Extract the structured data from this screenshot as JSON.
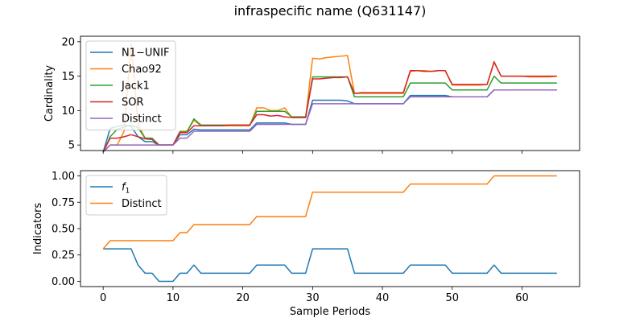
{
  "figure": {
    "title": "infraspecific name (Q631147)"
  },
  "chart_data": [
    {
      "type": "line",
      "ylabel": "Cardinality",
      "xlabel": "",
      "xlim": [
        -3.25,
        68.25
      ],
      "ylim": [
        4.2,
        20.8
      ],
      "xticks": [
        0,
        10,
        20,
        30,
        40,
        50,
        60
      ],
      "yticks": [
        5,
        10,
        15,
        20
      ],
      "legend_position": "upper-left",
      "x": [
        0,
        1,
        2,
        3,
        4,
        5,
        6,
        7,
        8,
        9,
        10,
        11,
        12,
        13,
        14,
        15,
        16,
        17,
        18,
        19,
        20,
        21,
        22,
        23,
        24,
        25,
        26,
        27,
        28,
        29,
        30,
        31,
        32,
        33,
        34,
        35,
        36,
        37,
        38,
        39,
        40,
        41,
        42,
        43,
        44,
        45,
        46,
        47,
        48,
        49,
        50,
        51,
        52,
        53,
        54,
        55,
        56,
        57,
        58,
        59,
        60,
        61,
        62,
        63,
        64,
        65
      ],
      "series": [
        {
          "name": "N1−UNIF",
          "color": "#1f77b4",
          "values": [
            4,
            7.4,
            7.7,
            7.9,
            7.7,
            6.2,
            5.5,
            5.5,
            5,
            5,
            5,
            6.5,
            6.5,
            7.3,
            7.2,
            7.2,
            7.2,
            7.2,
            7.2,
            7.2,
            7.2,
            7.2,
            8.2,
            8.2,
            8.2,
            8.2,
            8.2,
            8,
            8,
            8,
            11.5,
            11.5,
            11.5,
            11.5,
            11.5,
            11.4,
            11,
            11,
            11,
            11,
            11,
            11,
            11,
            11,
            12.2,
            12.2,
            12.2,
            12.2,
            12.2,
            12.2,
            12,
            12,
            12,
            12,
            12,
            12,
            13,
            13,
            13,
            13,
            13,
            13,
            13,
            13,
            13,
            13
          ]
        },
        {
          "name": "Chao92",
          "color": "#ff7f0e",
          "values": [
            4,
            5,
            5,
            7,
            19.7,
            8,
            6,
            6,
            5,
            5,
            5,
            7,
            7,
            8.6,
            7.8,
            7.8,
            7.8,
            7.8,
            7.8,
            7.8,
            7.8,
            7.8,
            10.4,
            10.4,
            10,
            10,
            10.4,
            9,
            9,
            9,
            17.6,
            17.5,
            17.7,
            17.8,
            17.9,
            18,
            12.5,
            12.5,
            12.5,
            12.5,
            12.5,
            12.5,
            12.5,
            12.5,
            15.7,
            15.8,
            15.8,
            15.7,
            15.8,
            15.8,
            13.7,
            13.7,
            13.7,
            13.7,
            13.7,
            13.8,
            17,
            15,
            15,
            15,
            15,
            14.9,
            14.9,
            14.9,
            14.9,
            15
          ]
        },
        {
          "name": "Jack1",
          "color": "#2ca02c",
          "values": [
            4,
            6.2,
            7.3,
            7.6,
            7.9,
            7.5,
            6,
            6,
            5,
            5,
            5,
            6.9,
            6.9,
            8.8,
            7.9,
            7.9,
            7.9,
            7.9,
            7.9,
            7.9,
            7.9,
            7.9,
            9.9,
            9.9,
            9.9,
            9.9,
            9.9,
            9.1,
            9.1,
            9.1,
            14.9,
            14.9,
            14.9,
            14.9,
            14.9,
            14.9,
            12,
            12,
            12,
            12,
            12,
            12,
            12,
            12,
            14,
            14,
            14,
            14,
            14,
            14,
            13,
            13,
            13,
            13,
            13,
            13,
            15,
            14,
            14,
            14,
            14,
            14,
            14,
            14,
            14,
            14
          ]
        },
        {
          "name": "SOR",
          "color": "#d62728",
          "values": [
            4,
            6,
            6,
            6.2,
            6.5,
            6.2,
            5.9,
            5.8,
            5,
            5,
            5,
            6.8,
            6.8,
            7.8,
            7.8,
            7.8,
            7.8,
            7.8,
            7.9,
            7.9,
            7.9,
            7.9,
            9.4,
            9.4,
            9.2,
            9.3,
            9.1,
            9,
            9,
            9,
            14.6,
            14.6,
            14.7,
            14.8,
            14.8,
            14.9,
            12.5,
            12.6,
            12.6,
            12.6,
            12.6,
            12.6,
            12.6,
            12.6,
            15.8,
            15.8,
            15.7,
            15.7,
            15.8,
            15.8,
            13.8,
            13.8,
            13.8,
            13.8,
            13.8,
            13.8,
            17.1,
            15,
            15,
            15,
            15,
            15,
            15,
            15,
            15,
            15
          ]
        },
        {
          "name": "Distinct",
          "color": "#9467bd",
          "values": [
            4,
            5,
            5,
            5,
            5,
            5,
            5,
            5,
            5,
            5,
            5,
            6,
            6,
            7,
            7,
            7,
            7,
            7,
            7,
            7,
            7,
            7,
            8,
            8,
            8,
            8,
            8,
            8,
            8,
            8,
            11,
            11,
            11,
            11,
            11,
            11,
            11,
            11,
            11,
            11,
            11,
            11,
            11,
            11,
            12,
            12,
            12,
            12,
            12,
            12,
            12,
            12,
            12,
            12,
            12,
            12,
            13,
            13,
            13,
            13,
            13,
            13,
            13,
            13,
            13,
            13
          ]
        }
      ]
    },
    {
      "type": "line",
      "ylabel": "Indicators",
      "xlabel": "Sample Periods",
      "xlim": [
        -3.25,
        68.25
      ],
      "ylim": [
        -0.05,
        1.05
      ],
      "xticks": [
        0,
        10,
        20,
        30,
        40,
        50,
        60
      ],
      "yticks": [
        0.0,
        0.25,
        0.5,
        0.75,
        1.0
      ],
      "ytick_labels": [
        "0.00",
        "0.25",
        "0.50",
        "0.75",
        "1.00"
      ],
      "legend_position": "upper-left",
      "x": [
        0,
        1,
        2,
        3,
        4,
        5,
        6,
        7,
        8,
        9,
        10,
        11,
        12,
        13,
        14,
        15,
        16,
        17,
        18,
        19,
        20,
        21,
        22,
        23,
        24,
        25,
        26,
        27,
        28,
        29,
        30,
        31,
        32,
        33,
        34,
        35,
        36,
        37,
        38,
        39,
        40,
        41,
        42,
        43,
        44,
        45,
        46,
        47,
        48,
        49,
        50,
        51,
        52,
        53,
        54,
        55,
        56,
        57,
        58,
        59,
        60,
        61,
        62,
        63,
        64,
        65
      ],
      "series": [
        {
          "name": "f",
          "name_subscript": "1",
          "color": "#1f77b4",
          "values": [
            0.308,
            0.308,
            0.308,
            0.308,
            0.308,
            0.154,
            0.077,
            0.077,
            0,
            0,
            0,
            0.077,
            0.077,
            0.154,
            0.077,
            0.077,
            0.077,
            0.077,
            0.077,
            0.077,
            0.077,
            0.077,
            0.154,
            0.154,
            0.154,
            0.154,
            0.154,
            0.077,
            0.077,
            0.077,
            0.308,
            0.308,
            0.308,
            0.308,
            0.308,
            0.308,
            0.077,
            0.077,
            0.077,
            0.077,
            0.077,
            0.077,
            0.077,
            0.077,
            0.154,
            0.154,
            0.154,
            0.154,
            0.154,
            0.154,
            0.077,
            0.077,
            0.077,
            0.077,
            0.077,
            0.077,
            0.154,
            0.077,
            0.077,
            0.077,
            0.077,
            0.077,
            0.077,
            0.077,
            0.077,
            0.077
          ]
        },
        {
          "name": "Distinct",
          "color": "#ff7f0e",
          "values": [
            0.308,
            0.385,
            0.385,
            0.385,
            0.385,
            0.385,
            0.385,
            0.385,
            0.385,
            0.385,
            0.385,
            0.462,
            0.462,
            0.538,
            0.538,
            0.538,
            0.538,
            0.538,
            0.538,
            0.538,
            0.538,
            0.538,
            0.615,
            0.615,
            0.615,
            0.615,
            0.615,
            0.615,
            0.615,
            0.615,
            0.846,
            0.846,
            0.846,
            0.846,
            0.846,
            0.846,
            0.846,
            0.846,
            0.846,
            0.846,
            0.846,
            0.846,
            0.846,
            0.846,
            0.923,
            0.923,
            0.923,
            0.923,
            0.923,
            0.923,
            0.923,
            0.923,
            0.923,
            0.923,
            0.923,
            0.923,
            1,
            1,
            1,
            1,
            1,
            1,
            1,
            1,
            1,
            1
          ]
        }
      ]
    }
  ]
}
